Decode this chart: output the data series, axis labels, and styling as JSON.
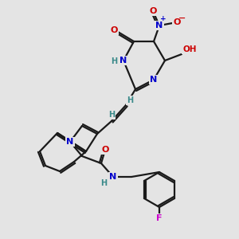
{
  "bg_color": "#e4e4e4",
  "bond_color": "#1a1a1a",
  "atom_colors": {
    "N": "#0000cc",
    "O": "#cc0000",
    "F": "#cc00cc",
    "H": "#3a8a8a",
    "C": "#1a1a1a"
  },
  "figsize": [
    3.0,
    3.0
  ],
  "dpi": 100
}
